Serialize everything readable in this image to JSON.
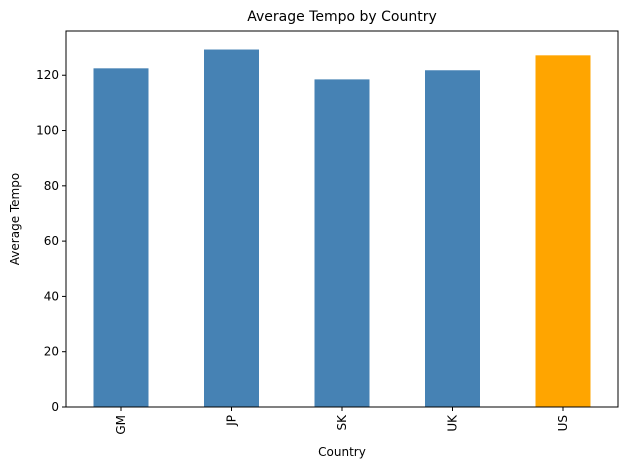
{
  "chart_data": {
    "type": "bar",
    "title": "Average Tempo by Country",
    "xlabel": "Country",
    "ylabel": "Average Tempo",
    "categories": [
      "GM",
      "JP",
      "SK",
      "UK",
      "US"
    ],
    "values": [
      122.5,
      129.3,
      118.5,
      121.8,
      127.2
    ],
    "ylim": [
      0,
      136
    ],
    "yticks": [
      0,
      20,
      40,
      60,
      80,
      100,
      120
    ],
    "bar_colors": [
      "#4682b4",
      "#4682b4",
      "#4682b4",
      "#4682b4",
      "#ffa500"
    ],
    "grid": false,
    "legend": "none"
  }
}
